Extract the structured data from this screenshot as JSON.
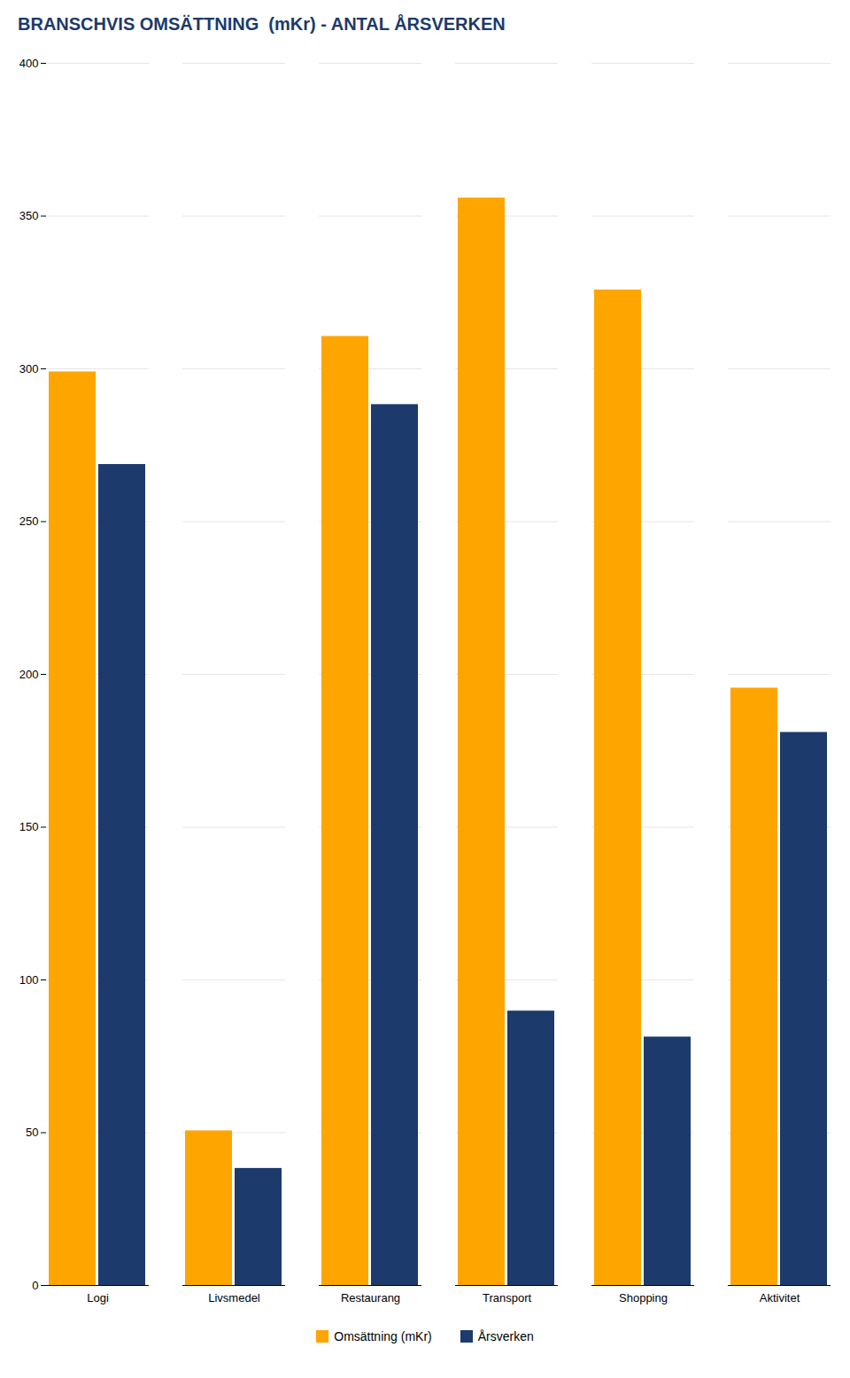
{
  "chart_data": {
    "type": "bar",
    "title": "BRANSCHVIS OMSÄTTNING  (mKr) - ANTAL ÅRSVERKEN",
    "categories": [
      "Logi",
      "Livsmedel",
      "Restaurang",
      "Transport",
      "Shopping",
      "Aktivitet"
    ],
    "series": [
      {
        "name": "Omsättning (mKr)",
        "color": "#FFA500",
        "values": [
          299.0,
          50.6,
          310.6,
          355.9,
          325.8,
          195.5
        ]
      },
      {
        "name": "Årsverken",
        "color": "#1C3A6B",
        "values": [
          268.7,
          38.3,
          288.3,
          89.8,
          81.3,
          181.0
        ]
      }
    ],
    "ylim": [
      0,
      400
    ],
    "yticks": [
      0,
      50,
      100,
      150,
      200,
      250,
      300,
      350,
      400
    ],
    "grid": true,
    "legend": "bottom"
  }
}
